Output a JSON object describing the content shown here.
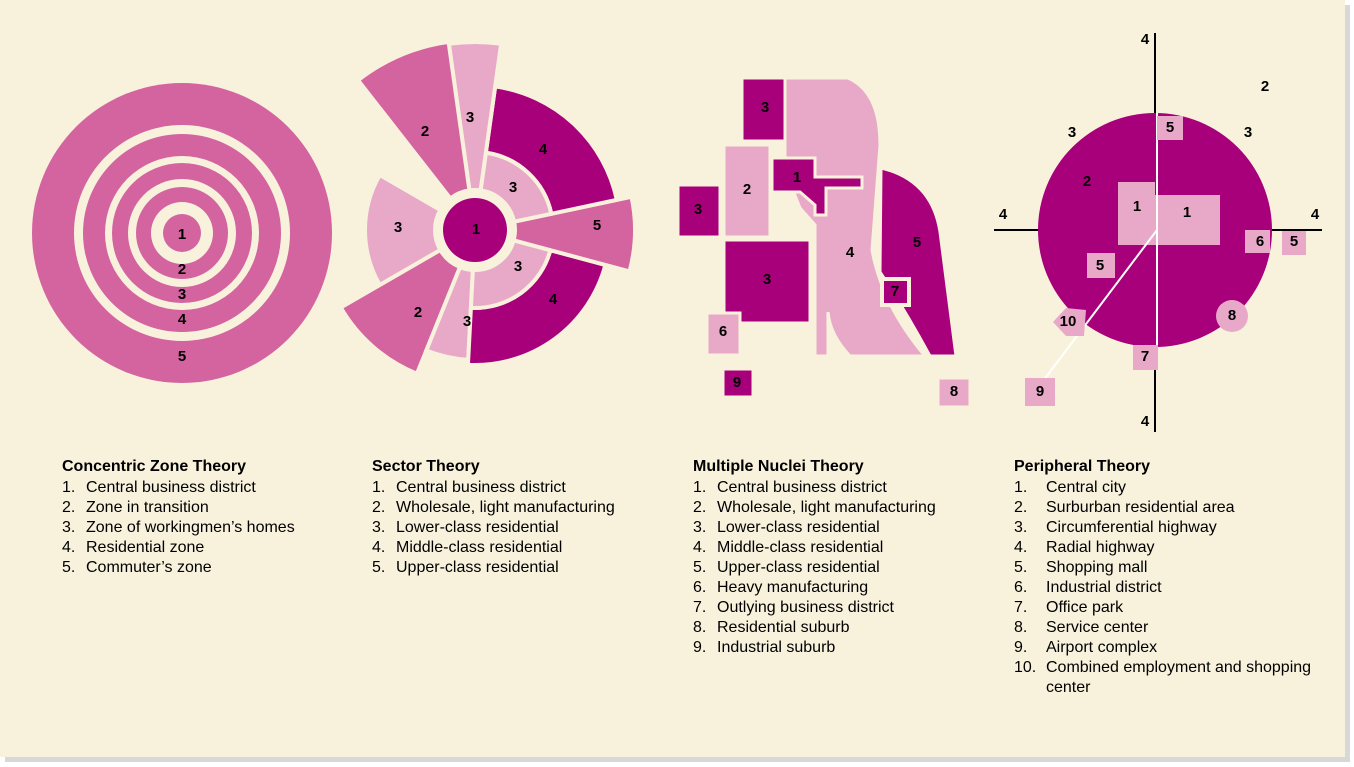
{
  "diagrams": [
    {
      "title": "Concentric Zone Theory",
      "labels": [
        1,
        2,
        3,
        4,
        5
      ],
      "legend": [
        {
          "number": "1.",
          "text": "Central business district"
        },
        {
          "number": "2.",
          "text": "Zone in transition"
        },
        {
          "number": "3.",
          "text": "Zone of workingmen’s homes"
        },
        {
          "number": "4.",
          "text": "Residential zone"
        },
        {
          "number": "5.",
          "text": "Commuter’s zone"
        }
      ]
    },
    {
      "title": "Sector Theory",
      "labels": [
        2,
        3,
        4,
        3,
        3,
        1,
        5,
        3,
        2,
        3,
        4
      ],
      "legend": [
        {
          "number": "1.",
          "text": "Central business district"
        },
        {
          "number": "2.",
          "text": "Wholesale, light manufacturing"
        },
        {
          "number": "3.",
          "text": "Lower-class residential"
        },
        {
          "number": "4.",
          "text": "Middle-class residential"
        },
        {
          "number": "5.",
          "text": "Upper-class residential"
        }
      ]
    },
    {
      "title": "Multiple Nuclei Theory",
      "labels": [
        3,
        2,
        1,
        3,
        4,
        3,
        5,
        7,
        6,
        9,
        8
      ],
      "legend": [
        {
          "number": "1.",
          "text": "Central business district"
        },
        {
          "number": "2.",
          "text": "Wholesale, light manufacturing"
        },
        {
          "number": "3.",
          "text": "Lower-class residential"
        },
        {
          "number": "4.",
          "text": "Middle-class residential"
        },
        {
          "number": "5.",
          "text": "Upper-class residential"
        },
        {
          "number": "6.",
          "text": "Heavy manufacturing"
        },
        {
          "number": "7.",
          "text": "Outlying business district"
        },
        {
          "number": "8.",
          "text": "Residential suburb"
        },
        {
          "number": "9.",
          "text": "Industrial suburb"
        }
      ]
    },
    {
      "title": "Peripheral Theory",
      "labels": [
        4,
        2,
        3,
        5,
        3,
        2,
        1,
        1,
        4,
        4,
        6,
        5,
        5,
        10,
        8,
        7,
        9,
        4
      ],
      "legend": [
        {
          "number": "1.",
          "text": "Central city"
        },
        {
          "number": "2.",
          "text": "Surburban residential area"
        },
        {
          "number": "3.",
          "text": "Circumferential highway"
        },
        {
          "number": "4.",
          "text": "Radial highway"
        },
        {
          "number": "5.",
          "text": "Shopping mall"
        },
        {
          "number": "6.",
          "text": "Industrial district"
        },
        {
          "number": "7.",
          "text": "Office park"
        },
        {
          "number": "8.",
          "text": "Service center"
        },
        {
          "number": "9.",
          "text": "Airport complex"
        },
        {
          "number": "10.",
          "text": "Combined employment and shopping center"
        }
      ]
    }
  ]
}
